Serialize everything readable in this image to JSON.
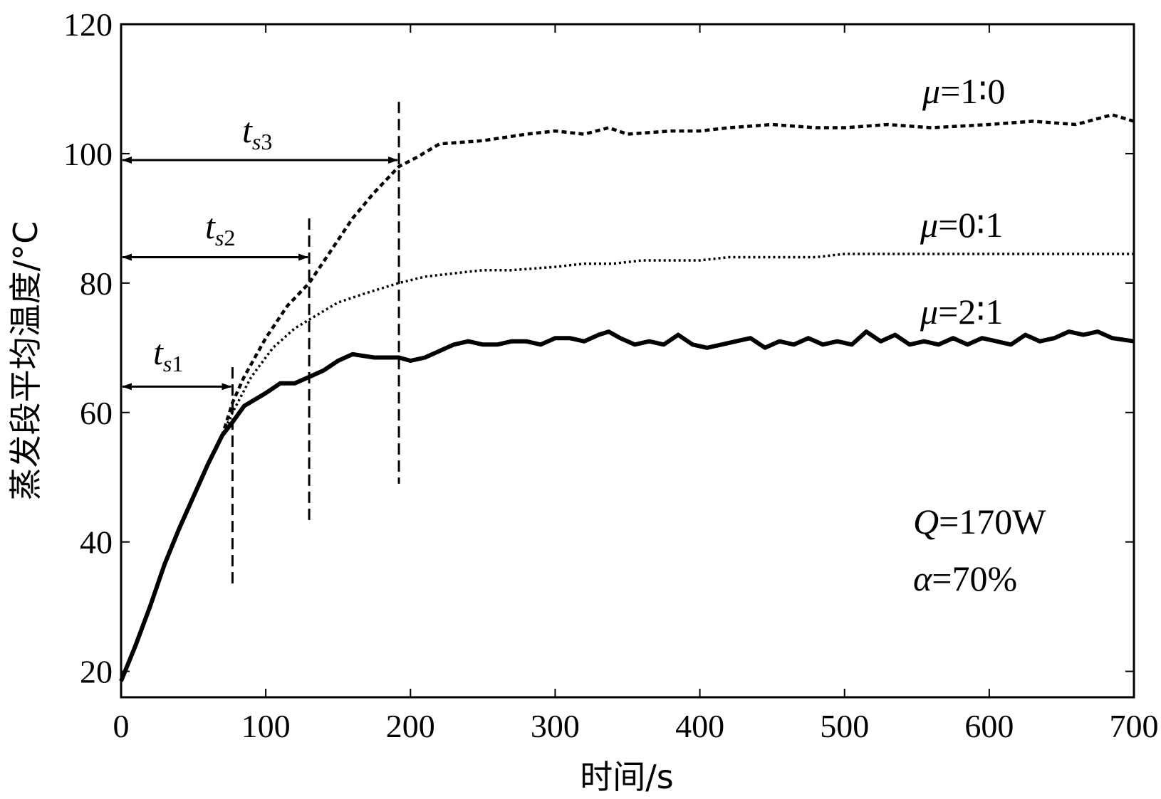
{
  "chart_data": {
    "type": "line",
    "xlabel": "时间/s",
    "ylabel": "蒸发段平均温度/°C",
    "xlim": [
      0,
      700
    ],
    "ylim": [
      16,
      120
    ],
    "xticks": [
      "0",
      "100",
      "200",
      "300",
      "400",
      "500",
      "600",
      "700"
    ],
    "yticks": [
      "20",
      "40",
      "60",
      "80",
      "100",
      "120"
    ],
    "xtick_values": [
      0,
      100,
      200,
      300,
      400,
      500,
      600,
      700
    ],
    "ytick_values": [
      20,
      40,
      60,
      80,
      100,
      120
    ],
    "grid": false,
    "series": [
      {
        "name": "μ=1:0",
        "style": "dashed",
        "x": [
          0,
          10,
          20,
          30,
          40,
          50,
          60,
          70,
          77,
          85,
          100,
          115,
          130,
          145,
          160,
          175,
          192,
          205,
          220,
          250,
          280,
          300,
          320,
          337,
          350,
          380,
          400,
          420,
          450,
          480,
          500,
          530,
          560,
          600,
          630,
          660,
          685,
          700
        ],
        "values": [
          18.5,
          24,
          30,
          36.5,
          42,
          47,
          52,
          56.5,
          61.5,
          65.5,
          71.5,
          76.5,
          80,
          85,
          90,
          94,
          98,
          99.5,
          101.5,
          102,
          103,
          103.5,
          103,
          104,
          103,
          103.5,
          103.5,
          104,
          104.5,
          104,
          104,
          104.5,
          104,
          104.5,
          105,
          104.5,
          106,
          105
        ]
      },
      {
        "name": "μ=0:1",
        "style": "dotted",
        "x": [
          0,
          10,
          20,
          30,
          40,
          50,
          60,
          70,
          77,
          90,
          105,
          120,
          135,
          150,
          170,
          192,
          210,
          230,
          250,
          270,
          300,
          320,
          340,
          360,
          380,
          400,
          420,
          440,
          460,
          480,
          500,
          520,
          540,
          560,
          580,
          600,
          620,
          640,
          660,
          680,
          700
        ],
        "values": [
          18.5,
          24,
          30,
          36.5,
          42,
          47,
          52,
          56.5,
          60,
          65.5,
          70,
          73,
          75,
          77,
          78.5,
          80,
          81,
          81.5,
          82,
          82,
          82.5,
          83,
          83,
          83.5,
          83.5,
          83.5,
          84,
          84,
          84,
          84,
          84.5,
          84.5,
          84.5,
          84.5,
          84.5,
          84.5,
          84.5,
          84.5,
          84.5,
          84.5,
          84.5
        ]
      },
      {
        "name": "μ=2:1",
        "style": "solid",
        "x": [
          0,
          10,
          20,
          30,
          40,
          50,
          60,
          70,
          77,
          85,
          100,
          110,
          120,
          130,
          140,
          150,
          160,
          175,
          192,
          200,
          210,
          220,
          230,
          240,
          250,
          260,
          270,
          280,
          290,
          300,
          310,
          320,
          330,
          337,
          345,
          355,
          365,
          375,
          385,
          395,
          405,
          415,
          425,
          435,
          445,
          455,
          465,
          475,
          485,
          495,
          505,
          515,
          525,
          535,
          545,
          555,
          565,
          575,
          585,
          595,
          605,
          615,
          625,
          635,
          645,
          655,
          665,
          675,
          685,
          700
        ],
        "values": [
          18.5,
          24,
          30,
          36.5,
          42,
          47,
          52,
          56.5,
          58.5,
          61,
          63,
          64.5,
          64.5,
          65.5,
          66.5,
          68,
          69,
          68.5,
          68.5,
          68,
          68.5,
          69.5,
          70.5,
          71,
          70.5,
          70.5,
          71,
          71,
          70.5,
          71.5,
          71.5,
          71,
          72,
          72.5,
          71.5,
          70.5,
          71,
          70.5,
          72,
          70.5,
          70,
          70.5,
          71,
          71.5,
          70,
          71,
          70.5,
          71.5,
          70.5,
          71,
          70.5,
          72.5,
          71,
          72,
          70.5,
          71,
          70.5,
          71.5,
          70.5,
          71.5,
          71,
          70.5,
          72,
          71,
          71.5,
          72.5,
          72,
          72.5,
          71.5,
          71
        ]
      }
    ],
    "settling_times": [
      {
        "label_main": "t",
        "label_sub": "s1",
        "x": 77,
        "y_arrow": 64,
        "y_top": 67,
        "y_bottom": 33
      },
      {
        "label_main": "t",
        "label_sub": "s2",
        "x": 130,
        "y_arrow": 84,
        "y_top": 90,
        "y_bottom": 43
      },
      {
        "label_main": "t",
        "label_sub": "s3",
        "x": 192,
        "y_arrow": 99,
        "y_top": 108,
        "y_bottom": 49
      }
    ],
    "series_labels": [
      {
        "greek": "μ",
        "rest": "=1∶0"
      },
      {
        "greek": "μ",
        "rest": "=0∶1"
      },
      {
        "greek": "μ",
        "rest": "=2∶1"
      }
    ],
    "conditions": {
      "line1_var": "Q",
      "line1_rest": "=170W",
      "line2_var": "α",
      "line2_rest": "=70%"
    }
  }
}
